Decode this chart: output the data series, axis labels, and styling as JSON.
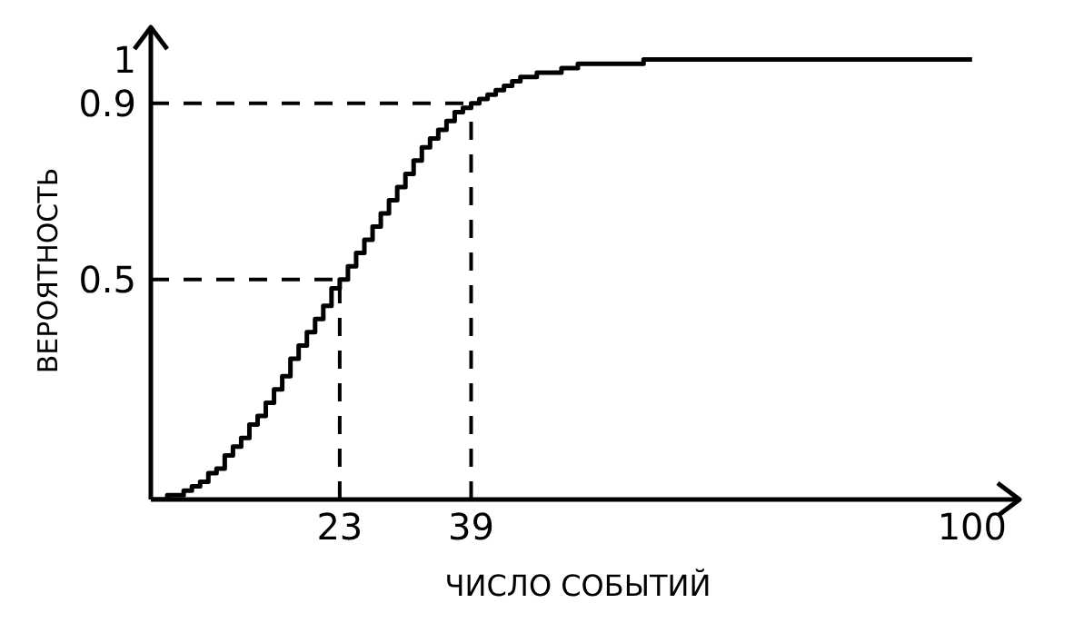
{
  "chart_data": {
    "type": "step",
    "xlabel": "ЧИСЛО СОБЫТИЙ",
    "ylabel": "ВЕРОЯТНОСТЬ",
    "x": [
      0,
      1,
      2,
      3,
      4,
      5,
      6,
      7,
      8,
      9,
      10,
      11,
      12,
      13,
      14,
      15,
      16,
      17,
      18,
      19,
      20,
      21,
      22,
      23,
      24,
      25,
      26,
      27,
      28,
      29,
      30,
      31,
      32,
      33,
      34,
      35,
      36,
      37,
      38,
      39,
      40,
      41,
      42,
      43,
      44,
      45,
      46,
      47,
      48,
      50,
      52,
      55,
      60,
      70,
      80,
      90,
      100
    ],
    "series": [
      {
        "color": "#000000",
        "values": [
          0,
          0,
          0.01,
          0.01,
          0.02,
          0.03,
          0.04,
          0.06,
          0.07,
          0.1,
          0.12,
          0.14,
          0.17,
          0.19,
          0.22,
          0.25,
          0.28,
          0.32,
          0.35,
          0.38,
          0.41,
          0.44,
          0.48,
          0.5,
          0.53,
          0.56,
          0.59,
          0.62,
          0.65,
          0.68,
          0.71,
          0.74,
          0.77,
          0.8,
          0.82,
          0.84,
          0.86,
          0.88,
          0.89,
          0.9,
          0.91,
          0.92,
          0.93,
          0.94,
          0.95,
          0.96,
          0.96,
          0.97,
          0.97,
          0.98,
          0.99,
          0.99,
          1,
          1,
          1,
          1,
          1
        ]
      }
    ],
    "xlim": [
      0,
      104
    ],
    "ylim": [
      0,
      1.04
    ],
    "xticks": [
      23,
      39,
      100
    ],
    "yticks": [
      0.5,
      0.9,
      1
    ],
    "ref_lines": [
      {
        "axis": "y",
        "value": 0.5,
        "line_style": "dashed"
      },
      {
        "axis": "x",
        "value": 23,
        "line_style": "dashed"
      },
      {
        "axis": "y",
        "value": 0.9,
        "line_style": "dashed"
      },
      {
        "axis": "x",
        "value": 39,
        "line_style": "dashed"
      }
    ],
    "marker": "none",
    "line_style": "solid"
  }
}
